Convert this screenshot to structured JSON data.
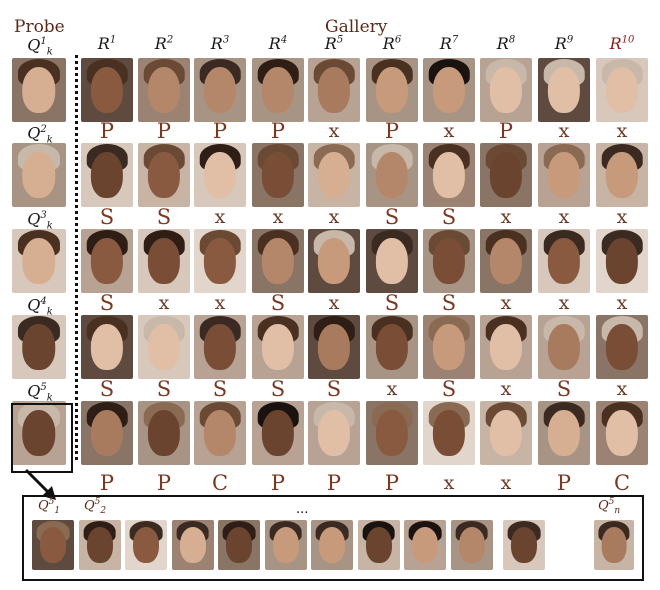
{
  "headers": {
    "probe": "Probe",
    "gallery": "Gallery"
  },
  "rank_labels": [
    "R",
    "R",
    "R",
    "R",
    "R",
    "R",
    "R",
    "R",
    "R",
    "R"
  ],
  "rank_numbers": [
    "1",
    "2",
    "3",
    "4",
    "5",
    "6",
    "7",
    "8",
    "9",
    "10"
  ],
  "probe_labels": [
    {
      "base": "Q",
      "sup": "1",
      "sub": "k"
    },
    {
      "base": "Q",
      "sup": "2",
      "sub": "k"
    },
    {
      "base": "Q",
      "sup": "3",
      "sub": "k"
    },
    {
      "base": "Q",
      "sup": "4",
      "sub": "k"
    },
    {
      "base": "Q",
      "sup": "5",
      "sub": "k"
    }
  ],
  "marks": [
    [
      "P",
      "P",
      "P",
      "P",
      "x",
      "P",
      "x",
      "P",
      "x",
      "x"
    ],
    [
      "S",
      "S",
      "x",
      "x",
      "x",
      "S",
      "S",
      "x",
      "x",
      "x"
    ],
    [
      "S",
      "x",
      "x",
      "S",
      "x",
      "S",
      "S",
      "x",
      "x",
      "x"
    ],
    [
      "S",
      "S",
      "S",
      "S",
      "S",
      "x",
      "S",
      "x",
      "S",
      "x"
    ],
    [
      "P",
      "P",
      "C",
      "P",
      "P",
      "P",
      "x",
      "x",
      "P",
      "C"
    ]
  ],
  "bottom_labels": {
    "first_base": "Q",
    "first_sup": "5",
    "first_sub": "1",
    "second_base": "Q",
    "second_sup": "5",
    "second_sub": "2",
    "ellipsis": "...",
    "last_base": "Q",
    "last_sup": "5",
    "last_sub": "n"
  }
}
